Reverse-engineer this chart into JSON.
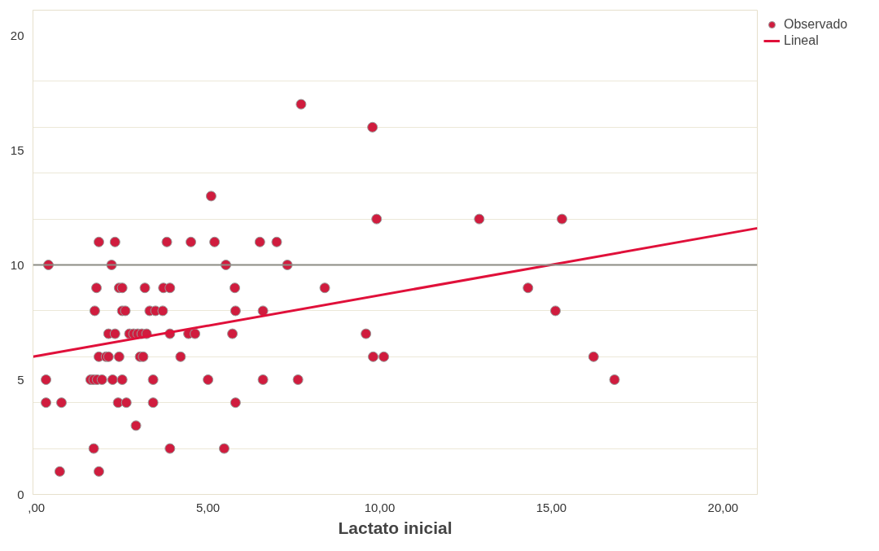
{
  "chart_data": {
    "type": "scatter",
    "xlabel": "Lactato inicial",
    "xlim": [
      -0.1,
      21
    ],
    "ylim": [
      0,
      21.1
    ],
    "xticks": [
      {
        "value": 0,
        "label": ",00"
      },
      {
        "value": 5,
        "label": "5,00"
      },
      {
        "value": 10,
        "label": "10,00"
      },
      {
        "value": 15,
        "label": "15,00"
      },
      {
        "value": 20,
        "label": "20,00"
      }
    ],
    "yticks": [
      0,
      {
        "value": 2,
        "label": null
      },
      {
        "value": 4,
        "label": null
      },
      5,
      {
        "value": 6,
        "label": null
      },
      {
        "value": 8,
        "label": null
      },
      10,
      {
        "value": 12,
        "label": null
      },
      {
        "value": 14,
        "label": null
      },
      15,
      {
        "value": 16,
        "label": null
      },
      {
        "value": 18,
        "label": null
      },
      20
    ],
    "grid": "y",
    "legend": "top right",
    "ref_lines": [
      {
        "axis": "y",
        "value": 10,
        "color": "#8c8c84"
      }
    ],
    "series": [
      {
        "name": "Observado",
        "marker": "circle",
        "color": "#d01c3e",
        "x": [
          0.28,
          0.28,
          0.35,
          0.68,
          0.73,
          1.58,
          1.67,
          1.67,
          1.7,
          1.75,
          1.77,
          1.82,
          1.82,
          1.82,
          1.91,
          2.03,
          2.1,
          2.1,
          2.19,
          2.22,
          2.29,
          2.29,
          2.38,
          2.41,
          2.41,
          2.5,
          2.5,
          2.5,
          2.59,
          2.62,
          2.71,
          2.83,
          2.9,
          2.95,
          3.02,
          3.07,
          3.11,
          3.16,
          3.21,
          3.3,
          3.4,
          3.4,
          3.47,
          3.68,
          3.7,
          3.8,
          3.89,
          3.89,
          3.89,
          4.2,
          4.43,
          4.5,
          4.62,
          5.0,
          5.09,
          5.19,
          5.47,
          5.52,
          5.71,
          5.78,
          5.8,
          5.8,
          6.51,
          6.6,
          6.6,
          7.0,
          7.31,
          7.62,
          7.71,
          8.4,
          9.6,
          9.79,
          9.81,
          9.91,
          10.12,
          12.9,
          14.32,
          15.12,
          15.31,
          16.23,
          16.84
        ],
        "values": [
          5,
          4,
          10,
          1,
          4,
          5,
          5,
          2,
          8,
          9,
          5,
          11,
          6,
          1,
          5,
          6,
          7,
          6,
          10,
          5,
          11,
          7,
          4,
          6,
          9,
          9,
          8,
          5,
          8,
          4,
          7,
          7,
          3,
          7,
          6,
          7,
          6,
          9,
          7,
          8,
          5,
          4,
          8,
          8,
          9,
          11,
          9,
          7,
          2,
          6,
          7,
          11,
          7,
          5,
          13,
          11,
          2,
          10,
          7,
          9,
          8,
          4,
          11,
          8,
          5,
          11,
          10,
          5,
          17,
          9,
          7,
          16,
          6,
          12,
          6,
          12,
          9,
          8,
          12,
          6,
          5
        ]
      },
      {
        "name": "Lineal",
        "type": "line",
        "color": "#e0103a",
        "x": [
          -0.1,
          21
        ],
        "values": [
          6.0,
          11.6
        ]
      }
    ]
  }
}
